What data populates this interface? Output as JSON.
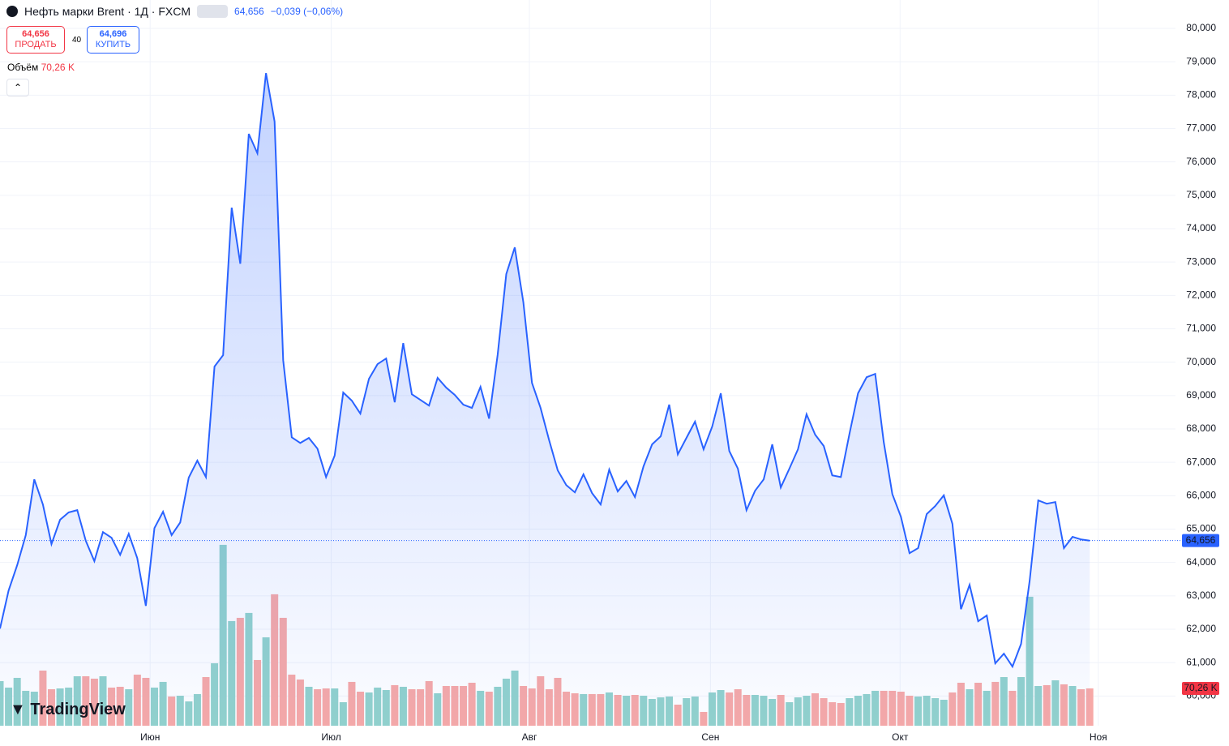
{
  "header": {
    "symbol": "Нефть марки Brent · 1Д · FXCM",
    "last": "64,656",
    "change": "−0,039 (−0,06%)",
    "sell_price": "64,656",
    "sell": "ПРОДАТЬ",
    "spread": "40",
    "buy_price": "64,696",
    "buy": "КУПИТЬ",
    "volume": "70,26 K",
    "logo": "TradingView"
  },
  "chart_data": {
    "type": "area",
    "series": [
      {
        "color": "#2962ff",
        "values": [
          62.02,
          63.16,
          63.92,
          64.82,
          66.49,
          65.74,
          64.55,
          65.28,
          65.5,
          65.57,
          64.65,
          64.04,
          64.91,
          64.74,
          64.23,
          64.86,
          64.13,
          62.7,
          65.03,
          65.52,
          64.82,
          65.2,
          66.54,
          67.05,
          66.56,
          69.87,
          70.21,
          74.63,
          72.95,
          76.84,
          76.26,
          78.66,
          77.21,
          70.06,
          67.75,
          67.58,
          67.73,
          67.41,
          66.56,
          67.2,
          69.09,
          68.85,
          68.46,
          69.5,
          69.94,
          70.11,
          68.8,
          70.57,
          69.04,
          68.87,
          68.7,
          69.53,
          69.24,
          69.02,
          68.73,
          68.63,
          69.26,
          68.31,
          70.23,
          72.64,
          73.44,
          71.79,
          69.38,
          68.63,
          67.66,
          66.76,
          66.32,
          66.1,
          66.64,
          66.08,
          65.74,
          66.78,
          66.13,
          66.44,
          65.96,
          66.88,
          67.54,
          67.78,
          68.73,
          67.24,
          67.73,
          68.22,
          67.39,
          68.07,
          69.07,
          67.34,
          66.81,
          65.57,
          66.15,
          66.49,
          67.54,
          66.25,
          66.81,
          67.39,
          68.44,
          67.83,
          67.49,
          66.61,
          66.56,
          67.85,
          69.07,
          69.55,
          69.65,
          67.61,
          66.05,
          65.37,
          64.28,
          64.43,
          65.45,
          65.69,
          66.01,
          65.16,
          62.6,
          63.33,
          62.24,
          62.41,
          60.98,
          61.27,
          60.88,
          61.56,
          63.45,
          65.86,
          65.76,
          65.81,
          64.43,
          64.77,
          64.69,
          64.656
        ]
      },
      {
        "name": "Объём",
        "axis": "y2",
        "up_color": "#92d2cc",
        "down_color": "#f7a9a7",
        "values": [
          84.0,
          71.8,
          90.1,
          65.7,
          64.1,
          103.8,
          68.7,
          70.2,
          71.8,
          93.1,
          93.1,
          88.6,
          93.1,
          71.8,
          73.3,
          68.7,
          96.2,
          90.1,
          71.8,
          82.5,
          55.0,
          56.5,
          45.8,
          59.6,
          91.6,
          117.6,
          340.5,
          197.0,
          203.1,
          212.3,
          123.7,
          166.4,
          247.4,
          203.1,
          96.2,
          87.0,
          73.3,
          68.7,
          70.2,
          70.2,
          44.3,
          82.5,
          64.1,
          62.6,
          71.8,
          67.2,
          76.4,
          73.3,
          68.7,
          68.7,
          84.0,
          61.1,
          74.8,
          74.8,
          74.8,
          80.9,
          65.7,
          64.1,
          73.3,
          88.6,
          103.8,
          74.8,
          70.2,
          93.1,
          68.7,
          90.1,
          64.1,
          61.1,
          59.6,
          59.6,
          59.6,
          62.6,
          58.0,
          56.5,
          58.0,
          56.5,
          50.4,
          53.4,
          55.0,
          39.7,
          51.9,
          55.0,
          26.0,
          62.6,
          67.2,
          62.6,
          68.7,
          58.0,
          58.0,
          56.5,
          50.4,
          58.0,
          44.3,
          53.4,
          56.5,
          61.1,
          51.9,
          44.3,
          42.8,
          51.9,
          56.5,
          59.6,
          65.7,
          65.7,
          65.7,
          64.1,
          56.5,
          55.0,
          56.5,
          51.9,
          48.9,
          62.6,
          80.9,
          68.7,
          80.9,
          65.7,
          82.5,
          91.6,
          65.7,
          91.6,
          242.8,
          74.8,
          76.4,
          85.5,
          77.9,
          74.8,
          68.7,
          70.26
        ]
      }
    ],
    "xlim": [
      0,
      137
    ],
    "xticks": [
      {
        "value": 17.5,
        "label": "Июн"
      },
      {
        "value": 38.6,
        "label": "Июл"
      },
      {
        "value": 61.7,
        "label": "Авг"
      },
      {
        "value": 82.8,
        "label": "Сен"
      },
      {
        "value": 104.9,
        "label": "Окт"
      },
      {
        "value": 128,
        "label": "Ноя"
      }
    ],
    "ylim": [
      59.11,
      80.85
    ],
    "yticks": [
      {
        "value": 60,
        "label": "60,000"
      },
      {
        "value": 61,
        "label": "61,000"
      },
      {
        "value": 62,
        "label": "62,000"
      },
      {
        "value": 63,
        "label": "63,000"
      },
      {
        "value": 64,
        "label": "64,000"
      },
      {
        "value": 65,
        "label": "65,000"
      },
      {
        "value": 66,
        "label": "66,000"
      },
      {
        "value": 67,
        "label": "67,000"
      },
      {
        "value": 68,
        "label": "68,000"
      },
      {
        "value": 69,
        "label": "69,000"
      },
      {
        "value": 70,
        "label": "70,000"
      },
      {
        "value": 71,
        "label": "71,000"
      },
      {
        "value": 72,
        "label": "72,000"
      },
      {
        "value": 73,
        "label": "73,000"
      },
      {
        "value": 74,
        "label": "74,000"
      },
      {
        "value": 75,
        "label": "75,000"
      },
      {
        "value": 76,
        "label": "76,000"
      },
      {
        "value": 77,
        "label": "77,000"
      },
      {
        "value": 78,
        "label": "78,000"
      },
      {
        "value": 79,
        "label": "79,000"
      },
      {
        "value": 80,
        "label": "80,000"
      }
    ],
    "y2lim": [
      0,
      1366
    ],
    "grid": true
  }
}
